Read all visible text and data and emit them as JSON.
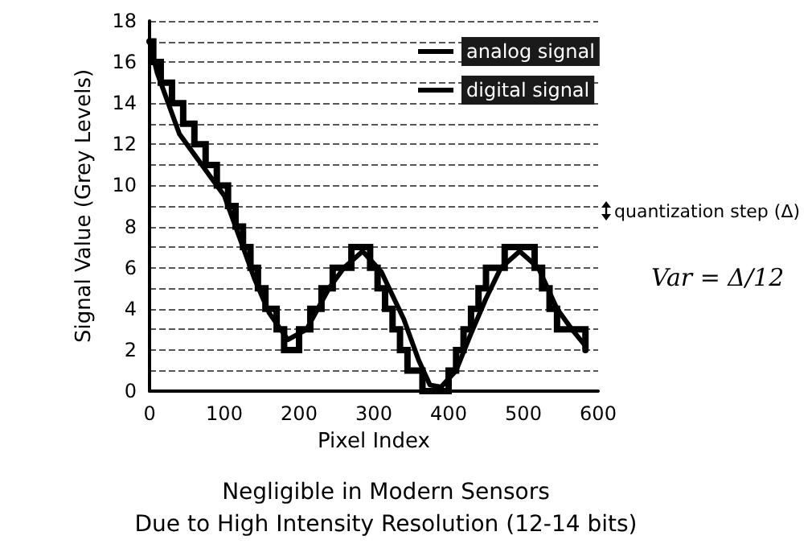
{
  "chart_data": {
    "type": "line",
    "xlabel": "Pixel Index",
    "ylabel": "Signal Value (Grey Levels)",
    "xlim": [
      0,
      600
    ],
    "xticks": [
      0,
      100,
      200,
      300,
      400,
      500,
      600
    ],
    "ylim": [
      0,
      18
    ],
    "yticks": [
      0,
      {
        "value": 1,
        "label": null
      },
      2,
      {
        "value": 3,
        "label": null
      },
      4,
      {
        "value": 5,
        "label": null
      },
      6,
      {
        "value": 7,
        "label": null
      },
      8,
      {
        "value": 9,
        "label": null
      },
      10,
      {
        "value": 11,
        "label": null
      },
      12,
      {
        "value": 13,
        "label": null
      },
      14,
      {
        "value": 15,
        "label": null
      },
      16,
      {
        "value": 17,
        "label": null
      },
      18
    ],
    "grid": "y",
    "legend": "top right",
    "line_style": "solid",
    "marker": "none",
    "series": [
      {
        "name": "analog signal",
        "type": "line",
        "color": "#000000",
        "x": [
          0,
          10,
          25,
          40,
          60,
          80,
          100,
          120,
          140,
          160,
          185,
          210,
          240,
          260,
          285,
          310,
          340,
          360,
          375,
          390,
          410,
          430,
          450,
          470,
          495,
          520,
          545,
          565,
          583
        ],
        "values": [
          17,
          15.5,
          14,
          12.5,
          11.5,
          10.5,
          9.5,
          7.5,
          5.5,
          3.8,
          2.5,
          3,
          5,
          6,
          6.8,
          5.8,
          3.5,
          1.5,
          0.3,
          0.2,
          1,
          2.8,
          4.5,
          6,
          6.8,
          6,
          4,
          3,
          2.2
        ]
      },
      {
        "name": "digital signal",
        "type": "step",
        "color": "#000000",
        "x": [
          0,
          5,
          15,
          30,
          45,
          60,
          75,
          90,
          105,
          115,
          125,
          135,
          145,
          155,
          170,
          180,
          200,
          215,
          230,
          245,
          255,
          270,
          295,
          305,
          315,
          325,
          335,
          345,
          355,
          365,
          400,
          410,
          420,
          430,
          440,
          450,
          460,
          475,
          515,
          525,
          535,
          545,
          555,
          570,
          583
        ],
        "values": [
          17,
          16,
          15,
          14,
          13,
          12,
          11,
          10,
          9,
          8,
          7,
          6,
          5,
          4,
          3,
          2,
          3,
          4,
          5,
          6,
          6,
          7,
          6,
          5,
          4,
          3,
          2,
          1,
          1,
          0,
          1,
          2,
          3,
          4,
          5,
          6,
          6,
          7,
          6,
          5,
          4,
          3,
          3,
          3,
          2
        ]
      }
    ],
    "annotations": [
      "quantization step (Δ)",
      "Var = Δ/12",
      "Negligible in Modern Sensors\nDue to High Intensity Resolution (12-14 bits)"
    ]
  }
}
